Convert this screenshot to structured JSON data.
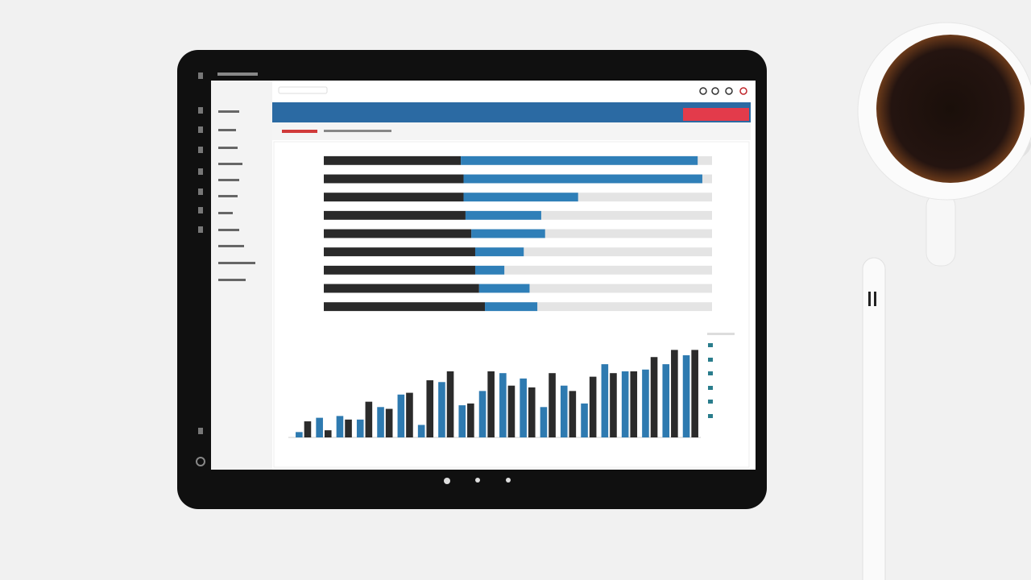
{
  "chart_data": [
    {
      "type": "bar",
      "orientation": "horizontal",
      "stacked": true,
      "categories": [
        null,
        null,
        null,
        null,
        null,
        null,
        null,
        null,
        null
      ],
      "series": [
        {
          "color": "#2a2a2a",
          "values": [
            35.3,
            36,
            36,
            36.5,
            38,
            39,
            39,
            40,
            41.5
          ]
        },
        {
          "color": "#2f7fb8",
          "values": [
            61,
            61.5,
            29.5,
            19.5,
            19,
            12.5,
            7.5,
            13,
            13.5
          ]
        }
      ],
      "xlim": [
        0,
        100
      ]
    },
    {
      "type": "bar",
      "orientation": "vertical",
      "stacked": false,
      "categories": [
        null,
        null,
        null,
        null,
        null,
        null,
        null,
        null,
        null,
        null,
        null,
        null,
        null,
        null,
        null,
        null,
        null,
        null,
        null,
        null
      ],
      "series": [
        {
          "color": "#2e7ab0",
          "values": [
            3,
            11,
            12,
            10,
            17,
            24,
            7,
            31,
            18,
            26,
            36,
            33,
            17,
            29,
            19,
            41,
            37,
            38,
            41,
            46
          ]
        },
        {
          "color": "#2b2b2b",
          "values": [
            9,
            4,
            10,
            20,
            16,
            25,
            32,
            37,
            19,
            37,
            29,
            28,
            36,
            26,
            34,
            36,
            37,
            45,
            49,
            49
          ]
        }
      ],
      "ylim": [
        0,
        60
      ]
    }
  ]
}
